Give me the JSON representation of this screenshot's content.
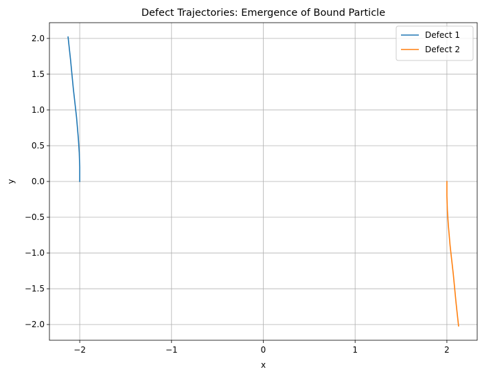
{
  "chart_data": {
    "type": "line",
    "title": "Defect Trajectories: Emergence of Bound Particle",
    "xlabel": "x",
    "ylabel": "y",
    "xlim": [
      -2.33,
      2.33
    ],
    "ylim": [
      -2.22,
      2.22
    ],
    "xticks": [
      -2,
      -1,
      0,
      1,
      2
    ],
    "xtick_labels": [
      "−2",
      "−1",
      "0",
      "1",
      "2"
    ],
    "yticks": [
      -2.0,
      -1.5,
      -1.0,
      -0.5,
      0.0,
      0.5,
      1.0,
      1.5,
      2.0
    ],
    "ytick_labels": [
      "−2.0",
      "−1.5",
      "−1.0",
      "−0.5",
      "0.0",
      "0.5",
      "1.0",
      "1.5",
      "2.0"
    ],
    "grid": true,
    "legend_position": "top-right",
    "series": [
      {
        "name": "Defect 1",
        "color": "#1f77b4",
        "x": [
          -2.0,
          -2.0,
          -2.005,
          -2.015,
          -2.035,
          -2.07,
          -2.1,
          -2.127
        ],
        "y": [
          0.0,
          0.2,
          0.4,
          0.6,
          0.9,
          1.3,
          1.7,
          2.02
        ]
      },
      {
        "name": "Defect 2",
        "color": "#ff7f0e",
        "x": [
          2.0,
          2.0,
          2.005,
          2.015,
          2.035,
          2.07,
          2.1,
          2.127
        ],
        "y": [
          0.0,
          -0.2,
          -0.4,
          -0.6,
          -0.9,
          -1.3,
          -1.7,
          -2.02
        ]
      }
    ]
  }
}
